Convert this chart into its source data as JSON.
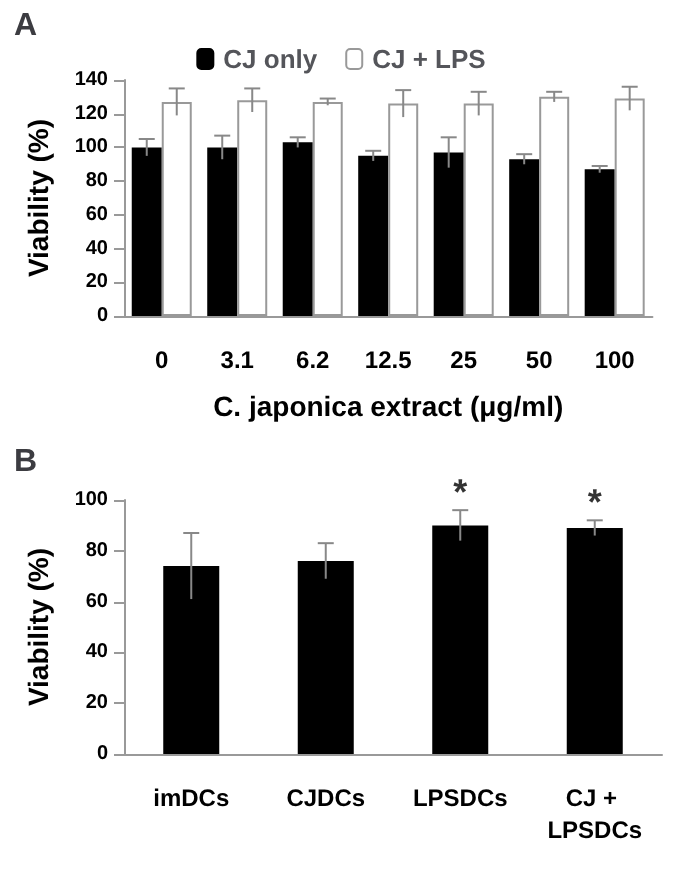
{
  "chart_data": [
    {
      "type": "bar",
      "title": "A",
      "xlabel": "C. japonica extract (μg/ml)",
      "ylabel": "Viability (%)",
      "categories": [
        "0",
        "3.1",
        "6.2",
        "12.5",
        "25",
        "50",
        "100"
      ],
      "series": [
        {
          "name": "CJ only",
          "color": "#000000",
          "values": [
            100,
            100,
            103,
            95,
            97,
            93,
            87
          ],
          "errors": [
            5,
            7,
            3,
            3,
            9,
            3,
            2
          ]
        },
        {
          "name": "CJ + LPS",
          "color": "#ffffff",
          "values": [
            127,
            128,
            127,
            126,
            126,
            130,
            129
          ],
          "errors": [
            8,
            7,
            2,
            8,
            7,
            3,
            7
          ]
        }
      ],
      "ylim": [
        0,
        140
      ],
      "yticks": [
        0,
        20,
        40,
        60,
        80,
        100,
        120,
        140
      ],
      "grid": false,
      "legend": "top"
    },
    {
      "type": "bar",
      "title": "B",
      "ylabel": "Viability (%)",
      "categories": [
        "imDCs",
        "CJDCs",
        "LPSDCs",
        "CJ + LPSDCs"
      ],
      "series": [
        {
          "color": "#000000",
          "values": [
            74,
            76,
            90,
            89
          ],
          "errors": [
            13,
            7,
            6,
            3
          ]
        }
      ],
      "ylim": [
        0,
        100
      ],
      "yticks": [
        0,
        20,
        40,
        60,
        80,
        100
      ],
      "grid": false,
      "legend": false,
      "annotations": [
        {
          "text": "*",
          "x": "LPSDCs",
          "y": 96
        },
        {
          "text": "*",
          "x": "CJ + LPSDCs",
          "y": 92
        }
      ]
    }
  ]
}
